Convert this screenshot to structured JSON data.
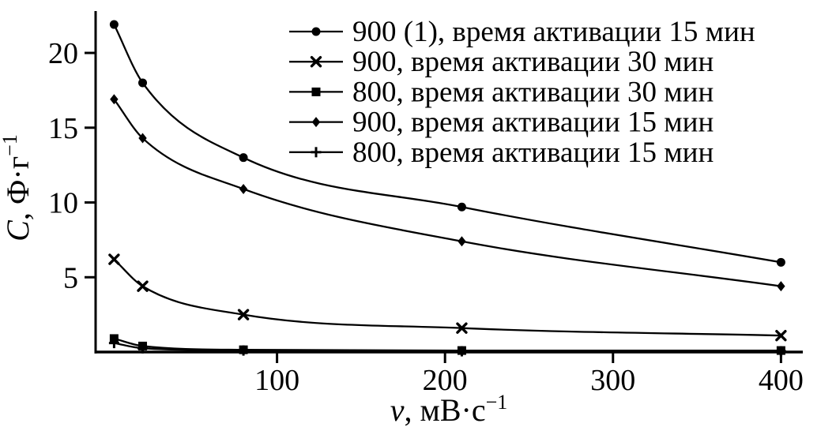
{
  "chart_data": {
    "type": "line",
    "title": "",
    "x": [
      3,
      20,
      80,
      210,
      400
    ],
    "series": [
      {
        "name": "900 (1), время активации 15 мин",
        "marker": "circle",
        "values": [
          21.9,
          18.0,
          13.0,
          9.7,
          6.0
        ]
      },
      {
        "name": "900, время активации 30 мин",
        "marker": "x",
        "values": [
          6.2,
          4.4,
          2.5,
          1.6,
          1.1
        ]
      },
      {
        "name": "800, время активации 30 мин",
        "marker": "square",
        "values": [
          0.9,
          0.4,
          0.15,
          0.1,
          0.1
        ]
      },
      {
        "name": "900, время активации 15 мин",
        "marker": "diamond",
        "values": [
          16.9,
          14.3,
          10.9,
          7.4,
          4.4
        ]
      },
      {
        "name": "800, время активации 15 мин",
        "marker": "plus",
        "values": [
          0.6,
          0.25,
          0.1,
          0.05,
          0.05
        ]
      }
    ],
    "xlabel": "ν, мВ·с⁻¹",
    "ylabel": "C, Ф·г⁻¹",
    "xlabel_parts": {
      "var": "ν",
      "rest": ", мВ·с",
      "sup": "−1"
    },
    "ylabel_parts": {
      "var": "C",
      "rest": ", Ф·г",
      "sup": "−1"
    },
    "x_ticks": [
      100,
      200,
      300,
      400
    ],
    "y_ticks": [
      5,
      10,
      15,
      20
    ],
    "xlim": [
      -8,
      413
    ],
    "ylim": [
      0,
      22.8
    ],
    "grid": false,
    "legend_position": "top-right",
    "line_color": "#000000",
    "background": "#ffffff"
  }
}
